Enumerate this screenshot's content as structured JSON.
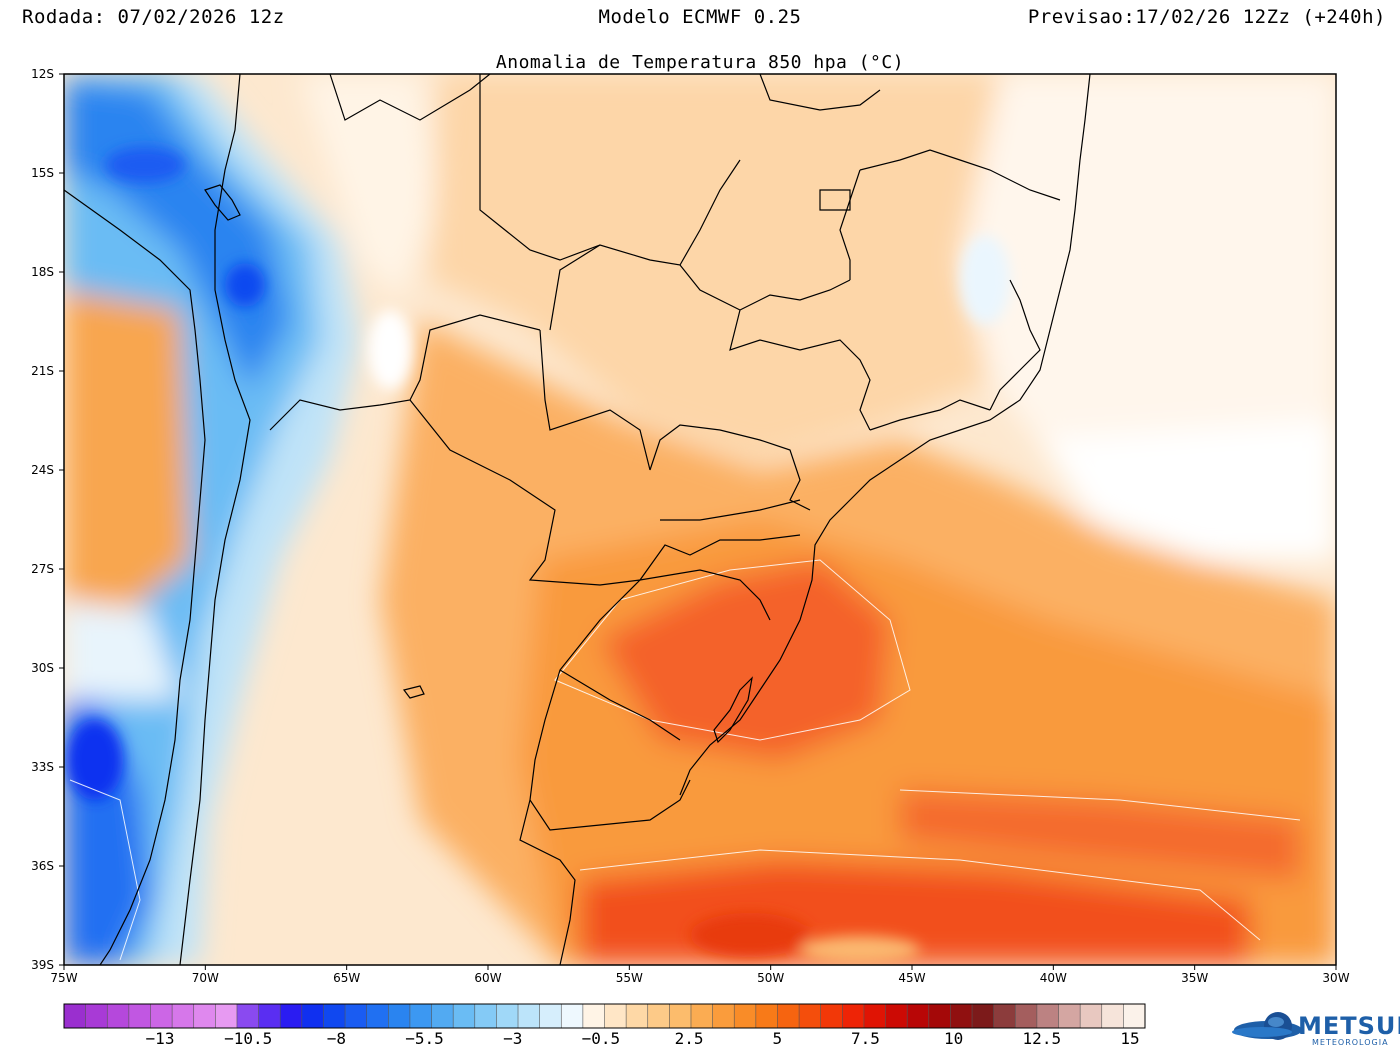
{
  "header": {
    "left": "Rodada: 07/02/2026 12z",
    "center": "Modelo ECMWF 0.25",
    "right": "Previsao:17/02/26 12Zz (+240h)",
    "subtitle": "Anomalia de Temperatura 850 hpa (°C)"
  },
  "axes": {
    "lat_labels": [
      "12S",
      "15S",
      "18S",
      "21S",
      "24S",
      "27S",
      "30S",
      "33S",
      "36S",
      "39S"
    ],
    "lon_labels": [
      "75W",
      "70W",
      "65W",
      "60W",
      "55W",
      "50W",
      "45W",
      "40W",
      "35W",
      "30W"
    ]
  },
  "colorbar": {
    "labels": [
      "-13",
      "-10.5",
      "-8",
      "-5.5",
      "-3",
      "-0.5",
      "2.5",
      "5",
      "7.5",
      "10",
      "12.5",
      "15"
    ],
    "colors": [
      "#9a2fcf",
      "#a83ad6",
      "#b548dc",
      "#c157e2",
      "#cc66e6",
      "#d677ea",
      "#df88ee",
      "#e79af2",
      "#8a4af0",
      "#5a2ef2",
      "#2a1cf2",
      "#1030f0",
      "#1048f0",
      "#1a5cf2",
      "#2070f2",
      "#2a84f0",
      "#3c98f2",
      "#52aaf2",
      "#6abcf4",
      "#84caf6",
      "#a0d8f8",
      "#bce4fa",
      "#d6eefc",
      "#eef8fe",
      "#fff4e6",
      "#ffe6c6",
      "#fed8a6",
      "#fdca88",
      "#fcbc6c",
      "#fbac52",
      "#fa9c3c",
      "#f98c28",
      "#f87a18",
      "#f66410",
      "#f44e0c",
      "#f23808",
      "#ee2406",
      "#e01404",
      "#cc0a04",
      "#b80606",
      "#a40808",
      "#901010",
      "#7c1a1a",
      "#8c3c3c",
      "#a45e5e",
      "#bc8282",
      "#d4a6a2",
      "#e8c8c0",
      "#f6e4da",
      "#fbf2ea"
    ]
  },
  "logo": {
    "text": "METSUL",
    "sub": "METEOROLOGIA"
  }
}
